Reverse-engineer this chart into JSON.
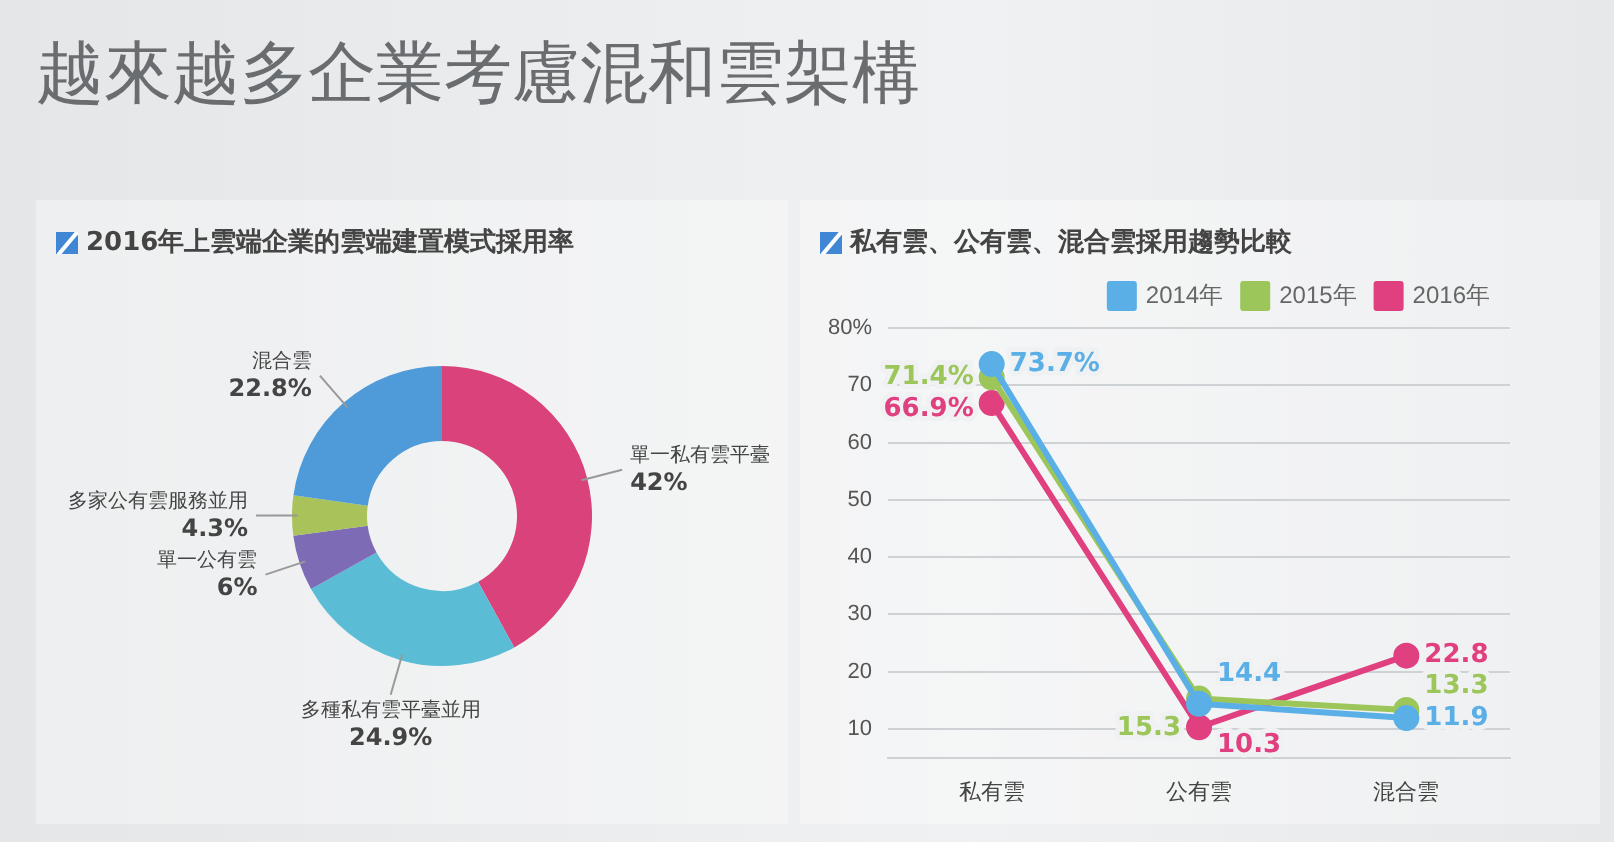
{
  "chart_data": [
    {
      "type": "other",
      "title": "越來越多企業考慮混和雲架構"
    },
    {
      "type": "donut",
      "title": "2016年上雲端企業的雲端建置模式採用率",
      "categories": [
        "單一私有雲平臺",
        "多種私有雲平臺並用",
        "單一公有雲",
        "多家公有雲服務並用",
        "混合雲"
      ],
      "values": [
        42,
        24.9,
        6,
        4.3,
        22.8
      ],
      "colors": [
        "#d9427a",
        "#5bbcd6",
        "#7d6bb5",
        "#a9c25a",
        "#4f9ad8"
      ],
      "value_labels": [
        "42%",
        "24.9%",
        "6%",
        "4.3%",
        "22.8%"
      ]
    },
    {
      "type": "line",
      "title": "私有雲、公有雲、混合雲採用趨勢比較",
      "categories": [
        "私有雲",
        "公有雲",
        "混合雲"
      ],
      "series": [
        {
          "name": "2014年",
          "color": "#5aafe6",
          "values": [
            73.7,
            14.4,
            11.9
          ],
          "value_labels": [
            "73.7%",
            "14.4",
            "11.9"
          ]
        },
        {
          "name": "2015年",
          "color": "#9cc65a",
          "values": [
            71.4,
            15.3,
            13.3
          ],
          "value_labels": [
            "71.4%",
            "15.3",
            "13.3"
          ]
        },
        {
          "name": "2016年",
          "color": "#e0407f",
          "values": [
            66.9,
            10.3,
            22.8
          ],
          "value_labels": [
            "66.9%",
            "10.3",
            "22.8"
          ]
        }
      ],
      "ylim": [
        5,
        80
      ],
      "yticks": [
        10,
        20,
        30,
        40,
        50,
        60,
        70,
        {
          "value": 80,
          "label": "80%"
        }
      ],
      "grid": "y",
      "legend": "top right",
      "marker": "circle"
    }
  ]
}
